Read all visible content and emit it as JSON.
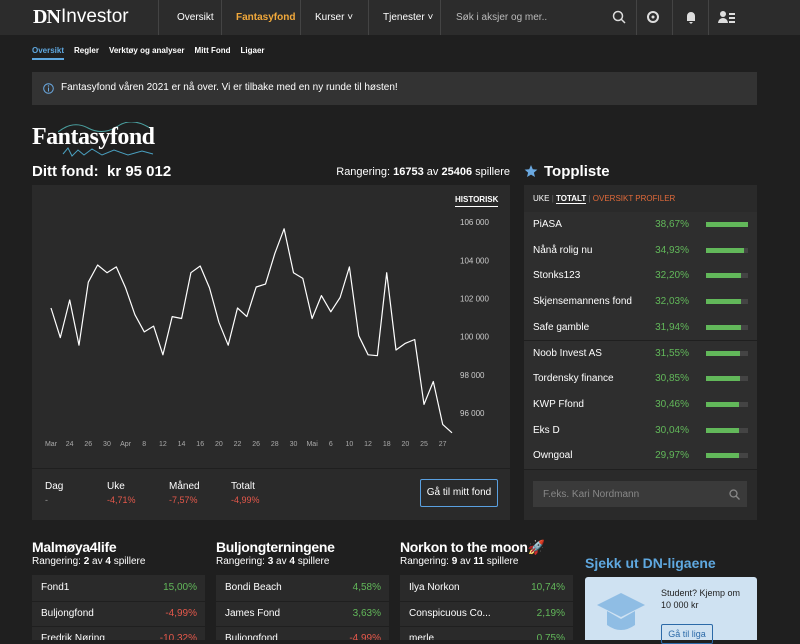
{
  "nav": {
    "logo_dn": "DN",
    "logo_investor": "Investor",
    "items": [
      "Oversikt",
      "Fantasyfond",
      "Kurser",
      "Tjenester"
    ],
    "search": "Søk i aksjer og mer.."
  },
  "subnav": [
    "Oversikt",
    "Regler",
    "Verktøy og analyser",
    "Mitt Fond",
    "Ligaer"
  ],
  "notice": "Fantasyfond våren 2021 er nå over. Vi er tilbake med en ny runde til høsten!",
  "brand": "Fantasyfond",
  "fund": {
    "label": "Ditt fond:",
    "value": "kr 95 012",
    "rank_label": "Rangering:",
    "rank": 16753,
    "rank_of": "av",
    "rank_total": 25406,
    "rank_suffix": "spillere",
    "tab": "HISTORISK",
    "stats": [
      {
        "label": "Dag",
        "value": "-"
      },
      {
        "label": "Uke",
        "value": "-4,71%"
      },
      {
        "label": "Måned",
        "value": "-7,57%"
      },
      {
        "label": "Totalt",
        "value": "-4,99%"
      }
    ],
    "button": "Gå til mitt fond"
  },
  "chart_data": {
    "type": "line",
    "color": "#ffffff",
    "grid": false,
    "categories": [
      "Mar",
      null,
      "24",
      null,
      "26",
      null,
      "30",
      null,
      "Apr",
      null,
      "8",
      null,
      "12",
      null,
      "14",
      null,
      "16",
      null,
      "20",
      null,
      "22",
      null,
      "26",
      null,
      "28",
      null,
      "30",
      null,
      "Mai",
      null,
      "6",
      null,
      "10",
      null,
      "12",
      null,
      "18",
      null,
      "20",
      null,
      "25",
      null,
      "27",
      null
    ],
    "values": [
      101550,
      100000,
      101970,
      99600,
      102900,
      103800,
      103400,
      103700,
      102600,
      101200,
      100300,
      100600,
      99100,
      101100,
      101000,
      103400,
      103750,
      102600,
      100800,
      99600,
      101550,
      101100,
      102650,
      102800,
      104400,
      105700,
      103400,
      103100,
      101000,
      102200,
      101350,
      102100,
      103700,
      100100,
      99100,
      99050,
      103400,
      99350,
      99700,
      99900,
      96500,
      97700,
      95450,
      95012
    ],
    "ylim": [
      94740,
      107730
    ],
    "yticks": [
      {
        "value": 96000,
        "label": "96 000"
      },
      {
        "value": 98000,
        "label": "98 000"
      },
      {
        "value": 100000,
        "label": "100 000"
      },
      {
        "value": 102000,
        "label": "102 000"
      },
      {
        "value": 104000,
        "label": "104 000"
      },
      {
        "value": 106000,
        "label": "106 000"
      }
    ]
  },
  "toplist": {
    "title": "Toppliste",
    "tabs": [
      "UKE",
      "TOTALT",
      "OVERSIKT PROFILER"
    ],
    "names": [
      "PiASA",
      "Nånå rolig nu",
      "Stonks123",
      "Skjensemannens fond",
      "Safe gamble",
      "Noob Invest AS",
      "Tordensky finance",
      "KWP Ffond",
      "Eks D",
      "Owngoal"
    ],
    "values": [
      38.67,
      34.93,
      32.2,
      32.03,
      31.94,
      31.55,
      30.85,
      30.46,
      30.04,
      29.97
    ],
    "value_labels": [
      "38,67%",
      "34,93%",
      "32,20%",
      "32,03%",
      "31,94%",
      "31,55%",
      "30,85%",
      "30,46%",
      "30,04%",
      "29,97%"
    ],
    "search": "F.eks. Kari Nordmann"
  },
  "leagues": [
    {
      "title": "Malmøya4life",
      "rank_label": "Rangering:",
      "rank": 2,
      "rank_of": "av",
      "rank_total": 4,
      "rank_suffix": "spillere",
      "rows": [
        [
          "Fond1",
          "15,00%"
        ],
        [
          "Buljongfond",
          "-4,99%"
        ],
        [
          "Fredrik Nøring",
          "-10,32%"
        ]
      ]
    },
    {
      "title": "Buljongterningene",
      "rank_label": "Rangering:",
      "rank": 3,
      "rank_of": "av",
      "rank_total": 4,
      "rank_suffix": "spillere",
      "rows": [
        [
          "Bondi Beach",
          "4,58%"
        ],
        [
          "James Fond",
          "3,63%"
        ],
        [
          "Buljongfond",
          "-4,99%"
        ]
      ]
    },
    {
      "title": "Norkon to the moon🚀",
      "rank_label": "Rangering:",
      "rank": 9,
      "rank_of": "av",
      "rank_total": 11,
      "rank_suffix": "spillere",
      "rows": [
        [
          "Ilya Norkon",
          "10,74%"
        ],
        [
          "Conspicuous Co...",
          "2,19%"
        ],
        [
          "merle",
          "0,75%"
        ]
      ]
    }
  ],
  "promo": {
    "title": "Sjekk ut DN-ligaene",
    "text": "Student? Kjemp om 10 000 kr",
    "button": "Gå til liga"
  }
}
